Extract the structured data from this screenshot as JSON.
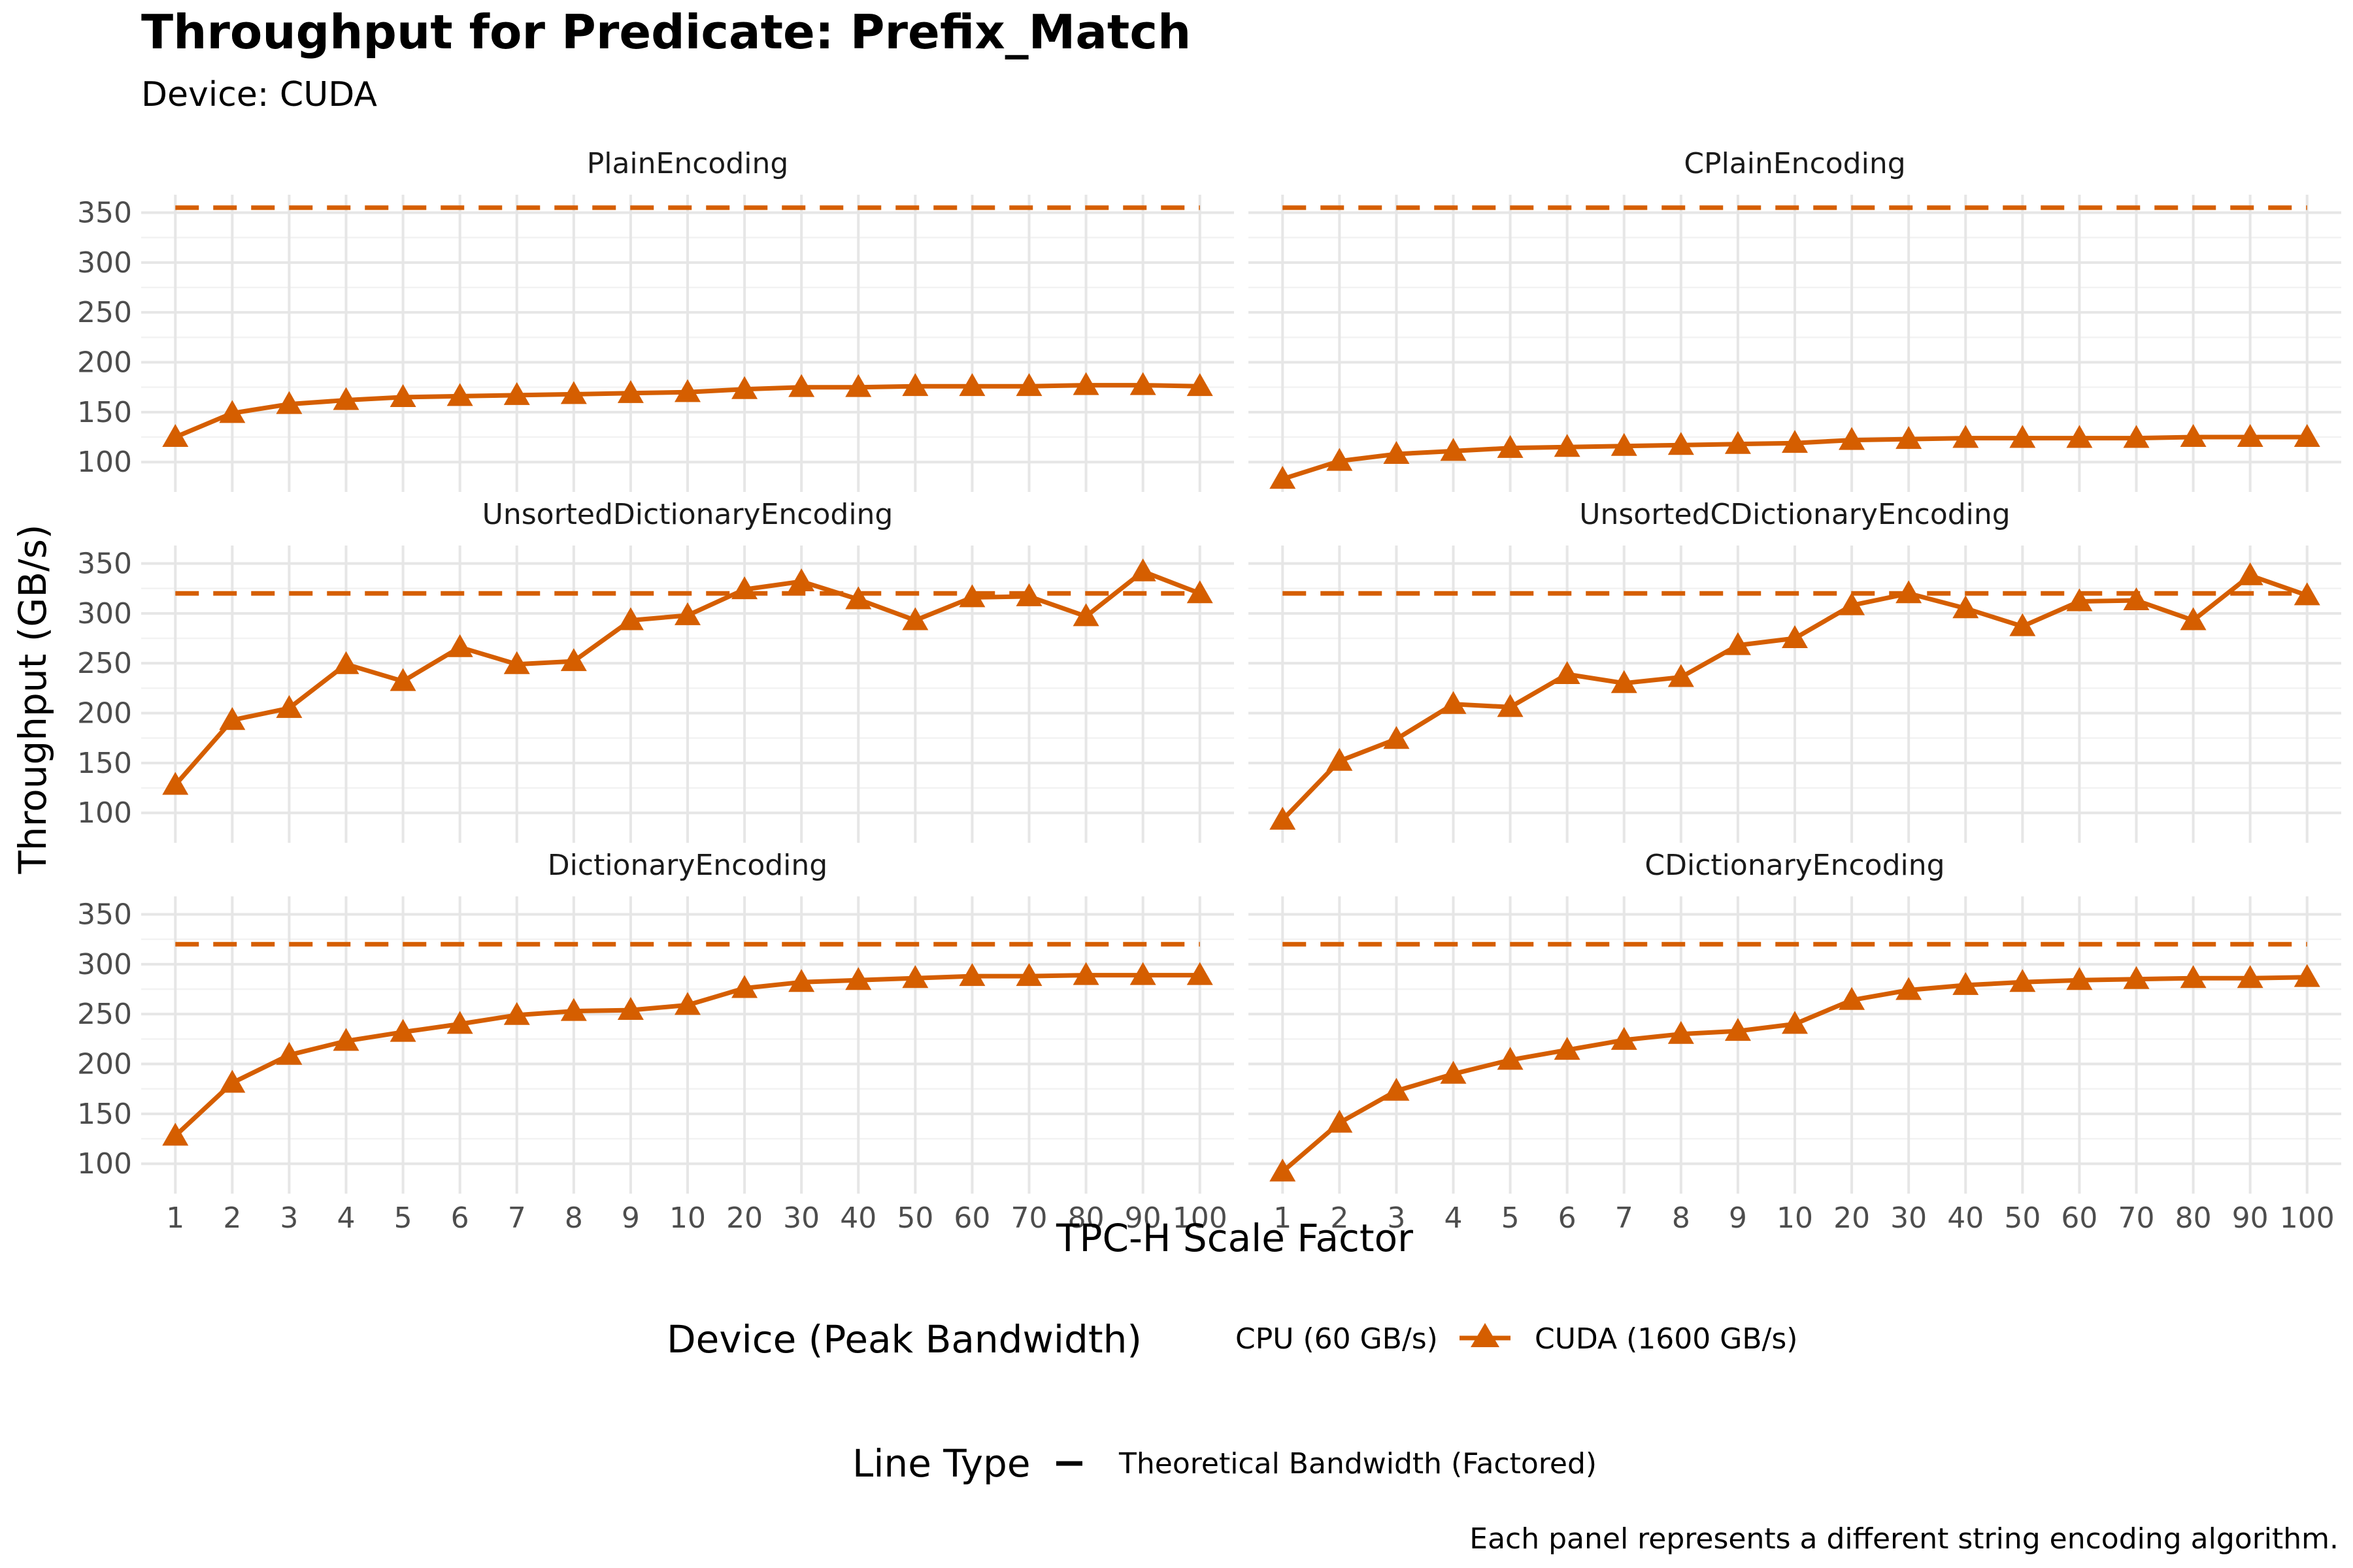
{
  "chart_data": {
    "type": "line",
    "title": "Throughput for Predicate: Prefix_Match",
    "subtitle": "Device: CUDA",
    "xlabel": "TPC-H Scale Factor",
    "ylabel": "Throughput (GB/s)",
    "caption": "Each panel represents a different string encoding algorithm.",
    "x": [
      "1",
      "2",
      "3",
      "4",
      "5",
      "6",
      "7",
      "8",
      "9",
      "10",
      "20",
      "30",
      "40",
      "50",
      "60",
      "70",
      "80",
      "90",
      "100"
    ],
    "yticks": [
      100,
      150,
      200,
      250,
      300,
      350
    ],
    "ylim": [
      70,
      368
    ],
    "grid": true,
    "series_color": "#D55E00",
    "legend": {
      "placement": "bottom",
      "device_title": "Device (Peak Bandwidth)",
      "device_entries": [
        "CPU (60 GB/s)",
        "CUDA (1600 GB/s)"
      ],
      "linetype_title": "Line Type",
      "linetype_entries": [
        "Theoretical Bandwidth (Factored)"
      ]
    },
    "panels": [
      {
        "name": "PlainEncoding",
        "theoretical": 355,
        "values": [
          125,
          149,
          158,
          162,
          165,
          166,
          167,
          168,
          169,
          170,
          173,
          175,
          175,
          176,
          176,
          176,
          177,
          177,
          176
        ]
      },
      {
        "name": "CPlainEncoding",
        "theoretical": 355,
        "values": [
          83,
          101,
          108,
          111,
          114,
          115,
          116,
          117,
          118,
          119,
          122,
          123,
          124,
          124,
          124,
          124,
          125,
          125,
          125
        ]
      },
      {
        "name": "UnsortedDictionaryEncoding",
        "theoretical": 320,
        "values": [
          128,
          193,
          205,
          249,
          232,
          266,
          249,
          252,
          293,
          298,
          324,
          332,
          314,
          293,
          316,
          317,
          297,
          342,
          320
        ]
      },
      {
        "name": "UnsortedCDictionaryEncoding",
        "theoretical": 320,
        "values": [
          93,
          152,
          174,
          209,
          206,
          239,
          230,
          236,
          268,
          275,
          308,
          320,
          305,
          287,
          312,
          313,
          293,
          338,
          318
        ]
      },
      {
        "name": "DictionaryEncoding",
        "theoretical": 320,
        "values": [
          128,
          181,
          209,
          223,
          232,
          240,
          249,
          253,
          254,
          259,
          276,
          282,
          284,
          286,
          288,
          288,
          289,
          289,
          289
        ]
      },
      {
        "name": "CDictionaryEncoding",
        "theoretical": 320,
        "values": [
          92,
          141,
          173,
          190,
          204,
          214,
          224,
          230,
          233,
          240,
          264,
          274,
          279,
          282,
          284,
          285,
          286,
          286,
          287
        ]
      }
    ]
  }
}
